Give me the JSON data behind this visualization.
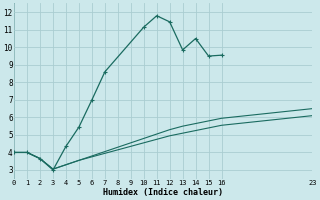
{
  "xlabel": "Humidex (Indice chaleur)",
  "bg_color": "#cce8eb",
  "grid_color": "#aacdd1",
  "line_color": "#1a6b60",
  "xlim": [
    0,
    23
  ],
  "ylim": [
    2.5,
    12.5
  ],
  "xticks": [
    0,
    1,
    2,
    3,
    4,
    5,
    6,
    7,
    8,
    9,
    10,
    11,
    12,
    13,
    14,
    15,
    16,
    23
  ],
  "yticks": [
    3,
    4,
    5,
    6,
    7,
    8,
    9,
    10,
    11,
    12
  ],
  "series": [
    {
      "x": [
        0,
        1,
        2,
        3,
        4,
        5,
        6,
        7,
        10,
        11,
        12,
        13,
        14,
        15,
        16
      ],
      "y": [
        4.0,
        4.0,
        3.65,
        3.0,
        4.35,
        5.45,
        7.0,
        8.6,
        11.15,
        11.8,
        11.45,
        9.85,
        10.5,
        9.5,
        9.55
      ],
      "marker": true,
      "linewidth": 0.9,
      "markersize": 3.0
    },
    {
      "x": [
        0,
        1,
        2,
        3,
        4,
        5,
        6,
        7,
        8,
        9,
        10,
        11,
        12,
        13,
        14,
        15,
        16,
        23
      ],
      "y": [
        4.0,
        4.0,
        3.65,
        3.05,
        3.3,
        3.55,
        3.75,
        3.95,
        4.15,
        4.35,
        4.55,
        4.75,
        4.95,
        5.1,
        5.25,
        5.4,
        5.55,
        6.1
      ],
      "marker": false,
      "linewidth": 0.8
    },
    {
      "x": [
        0,
        1,
        2,
        3,
        4,
        5,
        6,
        7,
        8,
        9,
        10,
        11,
        12,
        13,
        14,
        15,
        16,
        23
      ],
      "y": [
        4.0,
        4.0,
        3.65,
        3.05,
        3.3,
        3.55,
        3.8,
        4.05,
        4.3,
        4.55,
        4.8,
        5.05,
        5.3,
        5.5,
        5.65,
        5.8,
        5.95,
        6.5
      ],
      "marker": false,
      "linewidth": 0.8
    }
  ]
}
